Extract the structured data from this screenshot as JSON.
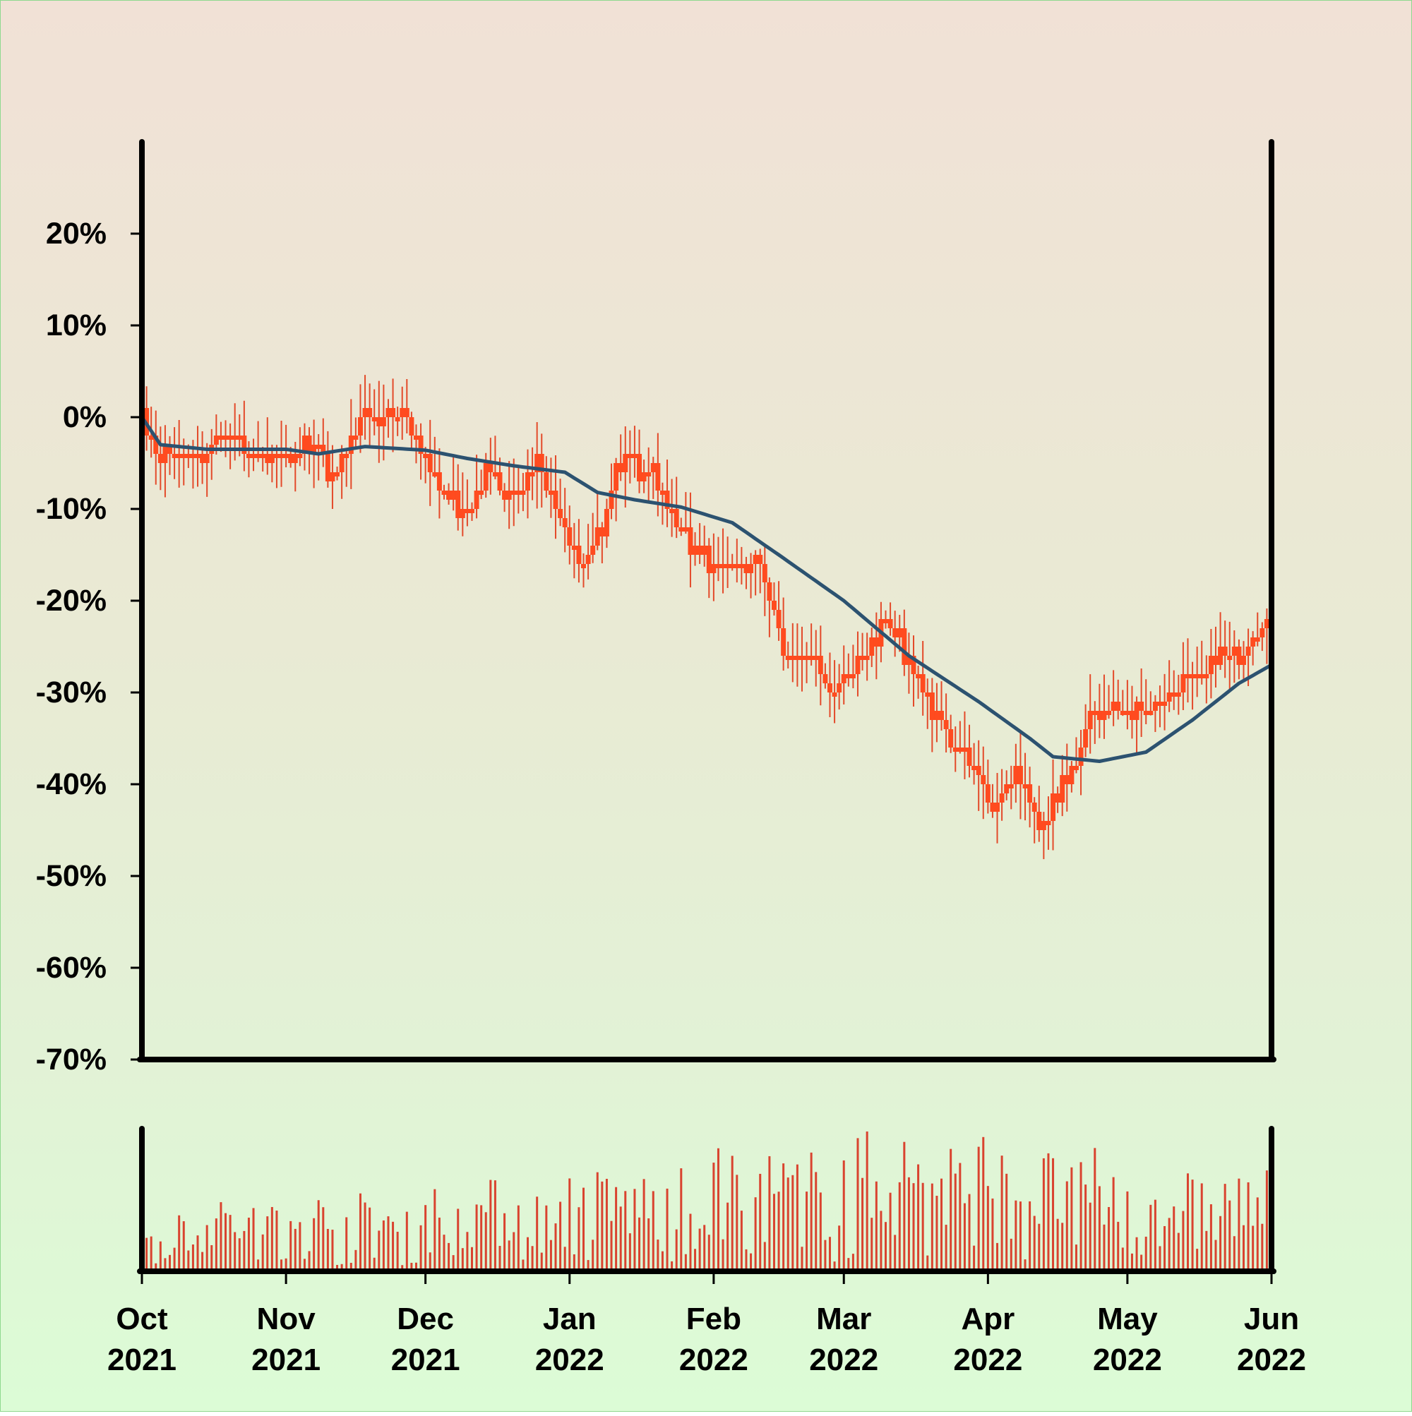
{
  "chart_data": [
    {
      "type": "candlestick",
      "x_start": "2021-10-01",
      "x_end": "2022-06-01",
      "ylim": [
        -70,
        30
      ],
      "y_ticks": [
        {
          "value": 20,
          "label": "20%"
        },
        {
          "value": 10,
          "label": "10%"
        },
        {
          "value": 0,
          "label": "0%"
        },
        {
          "value": -10,
          "label": "-10%"
        },
        {
          "value": -20,
          "label": "-20%"
        },
        {
          "value": -30,
          "label": "-30%"
        },
        {
          "value": -40,
          "label": "-40%"
        },
        {
          "value": -50,
          "label": "-50%"
        },
        {
          "value": -60,
          "label": "-60%"
        },
        {
          "value": -70,
          "label": "-70%"
        }
      ],
      "close_path": [
        {
          "x": "2021-10-01",
          "y": 0
        },
        {
          "x": "2021-10-04",
          "y": -4
        },
        {
          "x": "2021-10-12",
          "y": -4
        },
        {
          "x": "2021-10-20",
          "y": -2
        },
        {
          "x": "2021-10-28",
          "y": -5
        },
        {
          "x": "2021-11-05",
          "y": -3
        },
        {
          "x": "2021-11-12",
          "y": -6
        },
        {
          "x": "2021-11-18",
          "y": 1
        },
        {
          "x": "2021-11-27",
          "y": -1
        },
        {
          "x": "2021-12-03",
          "y": -7
        },
        {
          "x": "2021-12-10",
          "y": -10
        },
        {
          "x": "2021-12-15",
          "y": -6
        },
        {
          "x": "2021-12-20",
          "y": -9
        },
        {
          "x": "2021-12-25",
          "y": -5
        },
        {
          "x": "2022-01-04",
          "y": -17
        },
        {
          "x": "2022-01-13",
          "y": -4
        },
        {
          "x": "2022-01-18",
          "y": -6
        },
        {
          "x": "2022-01-23",
          "y": -11
        },
        {
          "x": "2022-01-30",
          "y": -15
        },
        {
          "x": "2022-02-05",
          "y": -17
        },
        {
          "x": "2022-02-10",
          "y": -15
        },
        {
          "x": "2022-02-16",
          "y": -26
        },
        {
          "x": "2022-02-22",
          "y": -26
        },
        {
          "x": "2022-02-27",
          "y": -30
        },
        {
          "x": "2022-03-05",
          "y": -26
        },
        {
          "x": "2022-03-10",
          "y": -22
        },
        {
          "x": "2022-03-16",
          "y": -28
        },
        {
          "x": "2022-03-22",
          "y": -34
        },
        {
          "x": "2022-03-27",
          "y": -37
        },
        {
          "x": "2022-04-02",
          "y": -42
        },
        {
          "x": "2022-04-07",
          "y": -39
        },
        {
          "x": "2022-04-13",
          "y": -44
        },
        {
          "x": "2022-04-18",
          "y": -40
        },
        {
          "x": "2022-04-23",
          "y": -33
        },
        {
          "x": "2022-04-28",
          "y": -31
        },
        {
          "x": "2022-05-04",
          "y": -32
        },
        {
          "x": "2022-05-10",
          "y": -30
        },
        {
          "x": "2022-05-16",
          "y": -28
        },
        {
          "x": "2022-05-22",
          "y": -26
        },
        {
          "x": "2022-05-27",
          "y": -25
        },
        {
          "x": "2022-06-01",
          "y": -21
        }
      ],
      "moving_average": [
        {
          "x": "2021-10-01",
          "y": 0
        },
        {
          "x": "2021-10-05",
          "y": -3
        },
        {
          "x": "2021-10-15",
          "y": -3.5
        },
        {
          "x": "2021-11-01",
          "y": -3.5
        },
        {
          "x": "2021-11-08",
          "y": -4
        },
        {
          "x": "2021-11-18",
          "y": -3.2
        },
        {
          "x": "2021-12-01",
          "y": -3.6
        },
        {
          "x": "2021-12-10",
          "y": -4.5
        },
        {
          "x": "2021-12-20",
          "y": -5.3
        },
        {
          "x": "2021-12-31",
          "y": -6
        },
        {
          "x": "2022-01-07",
          "y": -8.2
        },
        {
          "x": "2022-01-15",
          "y": -9
        },
        {
          "x": "2022-01-25",
          "y": -9.8
        },
        {
          "x": "2022-02-05",
          "y": -11.5
        },
        {
          "x": "2022-02-15",
          "y": -15
        },
        {
          "x": "2022-03-01",
          "y": -20
        },
        {
          "x": "2022-03-15",
          "y": -26
        },
        {
          "x": "2022-03-30",
          "y": -31
        },
        {
          "x": "2022-04-10",
          "y": -35
        },
        {
          "x": "2022-04-15",
          "y": -37
        },
        {
          "x": "2022-04-25",
          "y": -37.5
        },
        {
          "x": "2022-05-05",
          "y": -36.5
        },
        {
          "x": "2022-05-15",
          "y": -33
        },
        {
          "x": "2022-05-25",
          "y": -29
        },
        {
          "x": "2022-06-01",
          "y": -27
        }
      ],
      "colors": {
        "candle": "#ff4b1f",
        "wick": "#e34a2a",
        "moving_average": "#2c5270"
      }
    },
    {
      "type": "bar",
      "x_start": "2021-10-01",
      "x_end": "2022-06-01",
      "x_ticks": [
        {
          "date": "2021-10-01",
          "month": "Oct",
          "year": "2021"
        },
        {
          "date": "2021-11-01",
          "month": "Nov",
          "year": "2021"
        },
        {
          "date": "2021-12-01",
          "month": "Dec",
          "year": "2021"
        },
        {
          "date": "2022-01-01",
          "month": "Jan",
          "year": "2022"
        },
        {
          "date": "2022-02-01",
          "month": "Feb",
          "year": "2022"
        },
        {
          "date": "2022-03-01",
          "month": "Mar",
          "year": "2022"
        },
        {
          "date": "2022-04-01",
          "month": "Apr",
          "year": "2022"
        },
        {
          "date": "2022-05-01",
          "month": "May",
          "year": "2022"
        },
        {
          "date": "2022-06-01",
          "month": "Jun",
          "year": "2022"
        }
      ],
      "volume_level_by_month": [
        {
          "month": "2021-10",
          "level": 0.35
        },
        {
          "month": "2021-11",
          "level": 0.38
        },
        {
          "month": "2021-12",
          "level": 0.45
        },
        {
          "month": "2022-01",
          "level": 0.5
        },
        {
          "month": "2022-02",
          "level": 0.6
        },
        {
          "month": "2022-03",
          "level": 0.7
        },
        {
          "month": "2022-04",
          "level": 0.6
        },
        {
          "month": "2022-05",
          "level": 0.5
        }
      ],
      "colors": {
        "bar": "#d9432f"
      }
    }
  ]
}
